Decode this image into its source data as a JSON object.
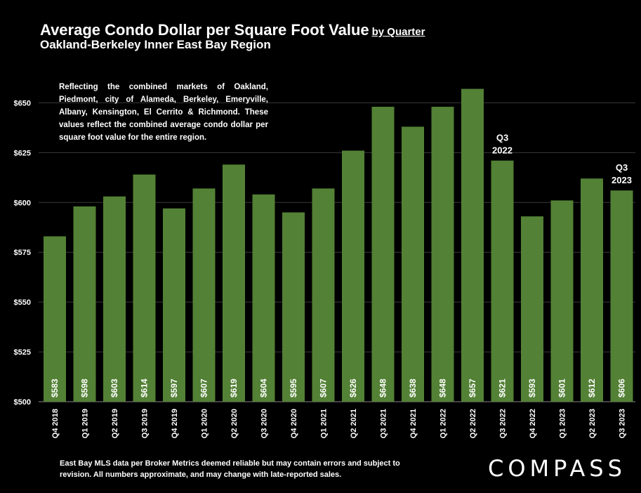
{
  "header": {
    "title": "Average Condo Dollar per Square Foot Value",
    "title_suffix": "by Quarter",
    "subtitle": "Oakland-Berkeley Inner East Bay Region"
  },
  "note": "Reflecting the combined markets of Oakland, Piedmont, city of Alameda, Berkeley, Emeryville, Albany, Kensington, El Cerrito & Richmond. These values reflect the combined average condo dollar per square foot value for the entire region.",
  "footer": "East Bay MLS data per Broker Metrics  deemed reliable but may contain errors and subject to revision. All numbers approximate, and may change with late-reported sales.",
  "logo": "COMPASS",
  "chart_data": {
    "type": "bar",
    "categories": [
      "Q4 2018",
      "Q1 2019",
      "Q2 2019",
      "Q3 2019",
      "Q4 2019",
      "Q1 2020",
      "Q2 2020",
      "Q3 2020",
      "Q4 2020",
      "Q1 2021",
      "Q2 2021",
      "Q3 2021",
      "Q4 2021",
      "Q1 2022",
      "Q2 2022",
      "Q3 2022",
      "Q4 2022",
      "Q1 2023",
      "Q2 2023",
      "Q3 2023"
    ],
    "values": [
      583,
      598,
      603,
      614,
      597,
      607,
      619,
      604,
      595,
      607,
      626,
      648,
      638,
      648,
      657,
      621,
      593,
      601,
      612,
      606
    ],
    "value_labels": [
      "$583",
      "$598",
      "$603",
      "$614",
      "$597",
      "$607",
      "$619",
      "$604",
      "$595",
      "$607",
      "$626",
      "$648",
      "$638",
      "$648",
      "$657",
      "$621",
      "$593",
      "$601",
      "$612",
      "$606"
    ],
    "ylim": [
      500,
      660
    ],
    "yticks": [
      500,
      525,
      550,
      575,
      600,
      625,
      650
    ],
    "ytick_labels": [
      "$500",
      "$525",
      "$550",
      "$575",
      "$600",
      "$625",
      "$650"
    ],
    "grid": true,
    "bar_color": "#538135",
    "annotations": [
      {
        "category": "Q3 2022",
        "lines": [
          "Q3",
          "2022"
        ]
      },
      {
        "category": "Q3 2023",
        "lines": [
          "Q3",
          "2023"
        ]
      }
    ]
  }
}
